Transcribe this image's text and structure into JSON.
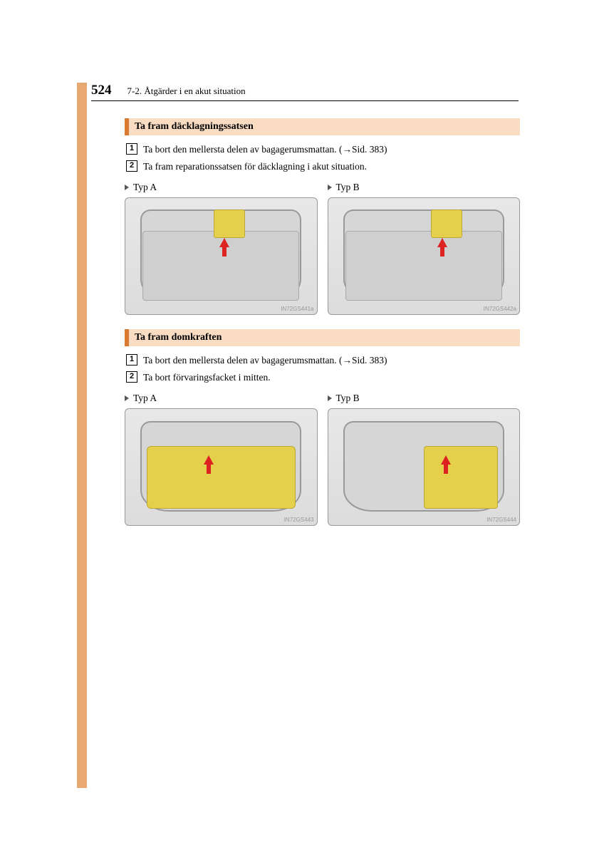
{
  "header": {
    "page_number": "524",
    "chapter": "7-2. Åtgärder i en akut situation"
  },
  "colors": {
    "accent_bar": "#e8a871",
    "heading_marker": "#d97a2e",
    "heading_bg": "#f9dcc2",
    "kit_yellow": "#e4d04b",
    "arrow_red": "#d22",
    "diagram_bg_top": "#e8e8e8",
    "diagram_bg_bottom": "#dcdcdc",
    "diagram_border": "#999999",
    "text": "#000000"
  },
  "section1": {
    "title": "Ta fram däcklagningssatsen",
    "steps": [
      "Ta bort den mellersta delen av bagagerumsmattan. (→Sid. 383)",
      "Ta fram reparationssatsen för däcklagning i akut situation."
    ],
    "types": {
      "a": {
        "label": "Typ A",
        "code": "IN72GS441a"
      },
      "b": {
        "label": "Typ B",
        "code": "IN72GS442a"
      }
    }
  },
  "section2": {
    "title": "Ta fram domkraften",
    "steps": [
      "Ta bort den mellersta delen av bagagerumsmattan. (→Sid. 383)",
      "Ta bort förvaringsfacket i mitten."
    ],
    "types": {
      "a": {
        "label": "Typ A",
        "code": "IN72GS443"
      },
      "b": {
        "label": "Typ B",
        "code": "IN72GS444"
      }
    }
  }
}
